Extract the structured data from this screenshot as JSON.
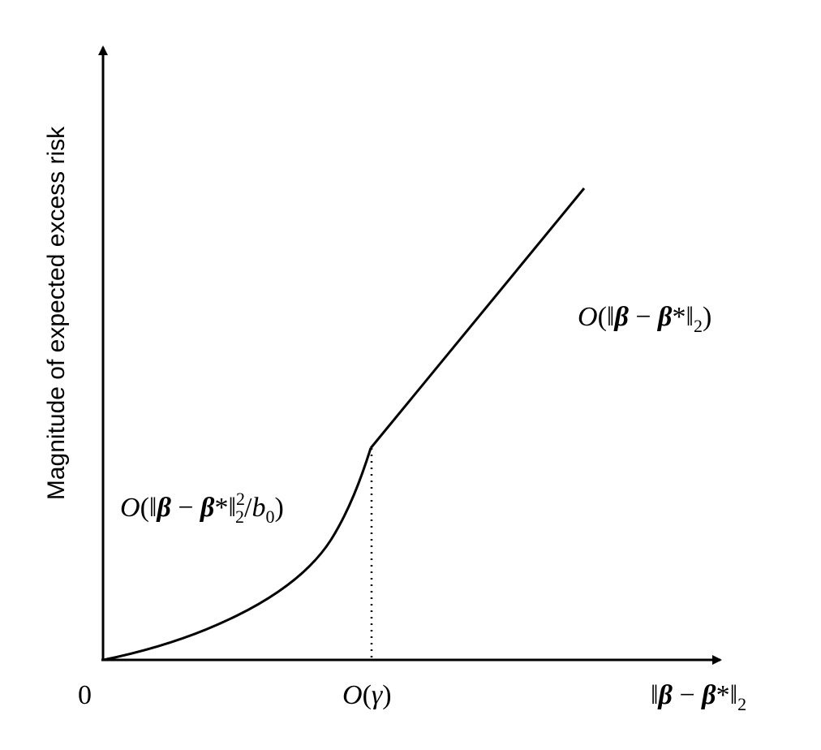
{
  "diagram": {
    "y_axis_label": "Magnitude of expected excess risk",
    "origin_label": "0",
    "x_axis_label": {
      "open": "‖",
      "beta": "β",
      "minus": " − ",
      "beta_star": "β",
      "star": "*",
      "close": "‖",
      "sub": "2"
    },
    "threshold_label": {
      "O": "O",
      "open": "(",
      "gamma": "γ",
      "close": ")"
    },
    "quadratic_region_label": {
      "O": "O",
      "open": "(‖",
      "beta": "β",
      "minus": " − ",
      "beta_star": "β",
      "star": "*",
      "norm": "‖",
      "sup": "2",
      "sub": "2",
      "slash": "/",
      "b": "b",
      "b_sub": "0",
      "close": ")"
    },
    "linear_region_label": {
      "O": "O",
      "open": "(‖",
      "beta": "β",
      "minus": " − ",
      "beta_star": "β",
      "star": "*",
      "norm": "‖",
      "sub": "2",
      "close": ")"
    }
  },
  "colors": {
    "line": "#000000",
    "background": "#ffffff"
  }
}
